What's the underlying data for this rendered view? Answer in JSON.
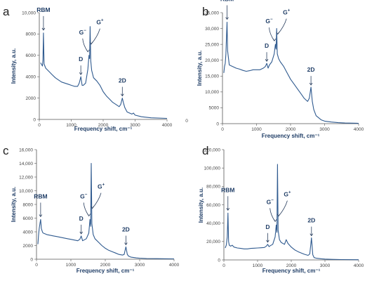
{
  "chart_data": [
    {
      "type": "line",
      "panel_label": "a",
      "xlabel": "Frequency shift, cm⁻¹",
      "ylabel": "Intensity, a.u.",
      "xlim": [
        0,
        4000
      ],
      "ylim": [
        0,
        10000
      ],
      "xticks": [
        "0",
        "1000",
        "2000",
        "3000",
        "4000",
        "0"
      ],
      "yticks": [
        "0",
        "2000",
        "4000",
        "6000",
        "8000",
        "10,000"
      ],
      "grid": false,
      "series": [
        {
          "x": [
            40,
            80,
            100,
            115,
            130,
            150,
            200,
            300,
            400,
            500,
            600,
            700,
            800,
            900,
            1000,
            1100,
            1200,
            1250,
            1300,
            1340,
            1380,
            1450,
            1520,
            1555,
            1575,
            1592,
            1610,
            1640,
            1700,
            1800,
            1900,
            2000,
            2100,
            2200,
            2300,
            2400,
            2500,
            2550,
            2600,
            2640,
            2680,
            2750,
            2900,
            2950,
            3000,
            3200,
            3500,
            4000
          ],
          "y": [
            5300,
            5100,
            5000,
            5600,
            8100,
            5200,
            4800,
            4500,
            4200,
            3900,
            3700,
            3500,
            3400,
            3300,
            3200,
            3100,
            3100,
            3400,
            4000,
            3200,
            3200,
            3400,
            4700,
            6000,
            5700,
            8700,
            5500,
            4600,
            3900,
            3600,
            3200,
            2600,
            2200,
            1900,
            1600,
            1400,
            1200,
            1400,
            2000,
            1500,
            1100,
            700,
            500,
            600,
            400,
            250,
            150,
            100
          ]
        }
      ],
      "annotations": [
        {
          "label": "RBM",
          "x": 130,
          "y": 8100
        },
        {
          "label": "D",
          "x": 1300,
          "y": 4000
        },
        {
          "label": "G⁻",
          "x": 1555,
          "y": 6000
        },
        {
          "label": "G⁺",
          "x": 1592,
          "y": 6400
        },
        {
          "label": "2D",
          "x": 2600,
          "y": 2000
        }
      ]
    },
    {
      "type": "line",
      "panel_label": "b",
      "xlabel": "Frequency shift, cm⁻¹",
      "ylabel": "Intensity, a.u.",
      "xlim": [
        0,
        4000
      ],
      "ylim": [
        0,
        35000
      ],
      "xticks": [
        "0",
        "1000",
        "2000",
        "3000",
        "4000"
      ],
      "yticks": [
        "0",
        "5000",
        "10,000",
        "15,000",
        "20,000",
        "25,000",
        "30,000",
        "35,000"
      ],
      "grid": false,
      "series": [
        {
          "x": [
            40,
            60,
            80,
            100,
            120,
            135,
            150,
            200,
            300,
            400,
            500,
            600,
            700,
            800,
            900,
            1000,
            1100,
            1200,
            1260,
            1300,
            1340,
            1380,
            1450,
            1520,
            1555,
            1575,
            1592,
            1610,
            1650,
            1700,
            1800,
            1900,
            2000,
            2100,
            2200,
            2300,
            2400,
            2450,
            2500,
            2550,
            2600,
            2640,
            2680,
            2750,
            2900,
            3000,
            3200,
            3400,
            3600,
            4000
          ],
          "y": [
            16000,
            18000,
            19000,
            22000,
            28000,
            32000,
            23000,
            18500,
            18000,
            17500,
            17200,
            16800,
            16500,
            16700,
            17000,
            17000,
            17000,
            17500,
            18000,
            19000,
            17500,
            18500,
            19500,
            22000,
            25000,
            23500,
            30000,
            22000,
            20500,
            19500,
            18000,
            16000,
            14000,
            12500,
            11000,
            9500,
            8000,
            7500,
            7000,
            8000,
            11500,
            7000,
            4500,
            2500,
            1200,
            800,
            500,
            300,
            200,
            100
          ]
        }
      ],
      "annotations": [
        {
          "label": "RBM",
          "x": 135,
          "y": 32000
        },
        {
          "label": "D",
          "x": 1300,
          "y": 19000
        },
        {
          "label": "G⁻",
          "x": 1555,
          "y": 25000
        },
        {
          "label": "G⁺",
          "x": 1592,
          "y": 26000
        },
        {
          "label": "2D",
          "x": 2600,
          "y": 11500
        }
      ]
    },
    {
      "type": "line",
      "panel_label": "c",
      "xlabel": "Frequency shift, cm⁻¹",
      "ylabel": "Intensity, a.u.",
      "xlim": [
        0,
        4000
      ],
      "ylim": [
        0,
        16000
      ],
      "xticks": [
        "0",
        "1000",
        "2000",
        "3000",
        "4000"
      ],
      "yticks": [
        "0",
        "2000",
        "4000",
        "6000",
        "8000",
        "10,000",
        "12,000",
        "14,000",
        "16,000"
      ],
      "grid": false,
      "series": [
        {
          "x": [
            40,
            60,
            80,
            100,
            120,
            140,
            160,
            180,
            200,
            300,
            400,
            500,
            600,
            700,
            800,
            900,
            1000,
            1100,
            1200,
            1260,
            1300,
            1340,
            1380,
            1450,
            1520,
            1555,
            1575,
            1592,
            1610,
            1650,
            1700,
            1800,
            1900,
            2000,
            2100,
            2200,
            2300,
            2400,
            2500,
            2550,
            2600,
            2640,
            2680,
            2750,
            2900,
            3000,
            3200,
            3500,
            4000
          ],
          "y": [
            2200,
            3500,
            4500,
            5200,
            5800,
            4500,
            4200,
            3900,
            3800,
            3600,
            3500,
            3400,
            3300,
            3200,
            3100,
            3000,
            2900,
            2800,
            2700,
            2900,
            3400,
            2700,
            2800,
            3000,
            3800,
            5800,
            4800,
            14000,
            5200,
            3600,
            3000,
            2500,
            2000,
            1600,
            1300,
            1100,
            900,
            700,
            600,
            700,
            1800,
            700,
            450,
            300,
            200,
            150,
            100,
            80,
            50
          ]
        }
      ],
      "annotations": [
        {
          "label": "RBM",
          "x": 120,
          "y": 5800
        },
        {
          "label": "D",
          "x": 1300,
          "y": 3400
        },
        {
          "label": "G⁻",
          "x": 1555,
          "y": 5800
        },
        {
          "label": "G⁺",
          "x": 1592,
          "y": 6400
        },
        {
          "label": "2D",
          "x": 2600,
          "y": 1800
        }
      ]
    },
    {
      "type": "line",
      "panel_label": "d",
      "xlabel": "Frequency shift, cm⁻¹",
      "ylabel": "Intensity, a.u.",
      "xlim": [
        0,
        4000
      ],
      "ylim": [
        0,
        120000
      ],
      "xticks": [
        "0",
        "1000",
        "2000",
        "3000",
        "4000"
      ],
      "yticks": [
        "0",
        "20,000",
        "40,000",
        "60,000",
        "80,000",
        "100,000",
        "120,000"
      ],
      "grid": false,
      "series": [
        {
          "x": [
            40,
            70,
            100,
            120,
            140,
            160,
            200,
            250,
            300,
            400,
            500,
            600,
            700,
            800,
            900,
            1000,
            1100,
            1200,
            1260,
            1300,
            1340,
            1380,
            1450,
            1520,
            1555,
            1575,
            1592,
            1610,
            1650,
            1700,
            1800,
            1850,
            1900,
            2000,
            2100,
            2200,
            2300,
            2400,
            2500,
            2550,
            2600,
            2640,
            2680,
            2750,
            2900,
            3000,
            3200,
            3500,
            4000
          ],
          "y": [
            13000,
            16000,
            25000,
            51000,
            20000,
            16000,
            15000,
            16000,
            14000,
            13000,
            12500,
            12000,
            12000,
            12500,
            12800,
            13000,
            13200,
            13500,
            15000,
            17000,
            14500,
            15500,
            17000,
            25000,
            38000,
            30000,
            104000,
            32000,
            22000,
            19000,
            17000,
            22000,
            18000,
            14000,
            11000,
            9000,
            7500,
            6000,
            5000,
            6500,
            24000,
            5500,
            2500,
            1800,
            1200,
            900,
            600,
            400,
            200
          ]
        }
      ],
      "annotations": [
        {
          "label": "RBM",
          "x": 120,
          "y": 51000
        },
        {
          "label": "D",
          "x": 1300,
          "y": 17000
        },
        {
          "label": "G⁻",
          "x": 1555,
          "y": 38000
        },
        {
          "label": "G⁺",
          "x": 1592,
          "y": 40000
        },
        {
          "label": "2D",
          "x": 2600,
          "y": 24000
        }
      ]
    }
  ],
  "series_color": "#2f5a8f",
  "label_color": "#1f3d66"
}
